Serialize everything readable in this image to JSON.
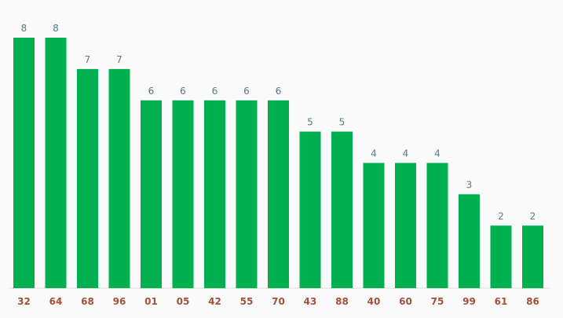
{
  "chart_data": {
    "type": "bar",
    "categories": [
      "32",
      "64",
      "68",
      "96",
      "01",
      "05",
      "42",
      "55",
      "70",
      "43",
      "88",
      "40",
      "60",
      "75",
      "99",
      "61",
      "86"
    ],
    "values": [
      8,
      8,
      7,
      7,
      6,
      6,
      6,
      6,
      6,
      5,
      5,
      4,
      4,
      4,
      3,
      2,
      2
    ],
    "title": "",
    "xlabel": "",
    "ylabel": "",
    "ylim": [
      0,
      8
    ],
    "grid": false,
    "legend": "none",
    "colors": {
      "bar": "#00b050",
      "value_label": "#5a7a8c",
      "category_label": "#a0523d",
      "baseline": "#dddddd",
      "background": "#fafafa"
    }
  }
}
